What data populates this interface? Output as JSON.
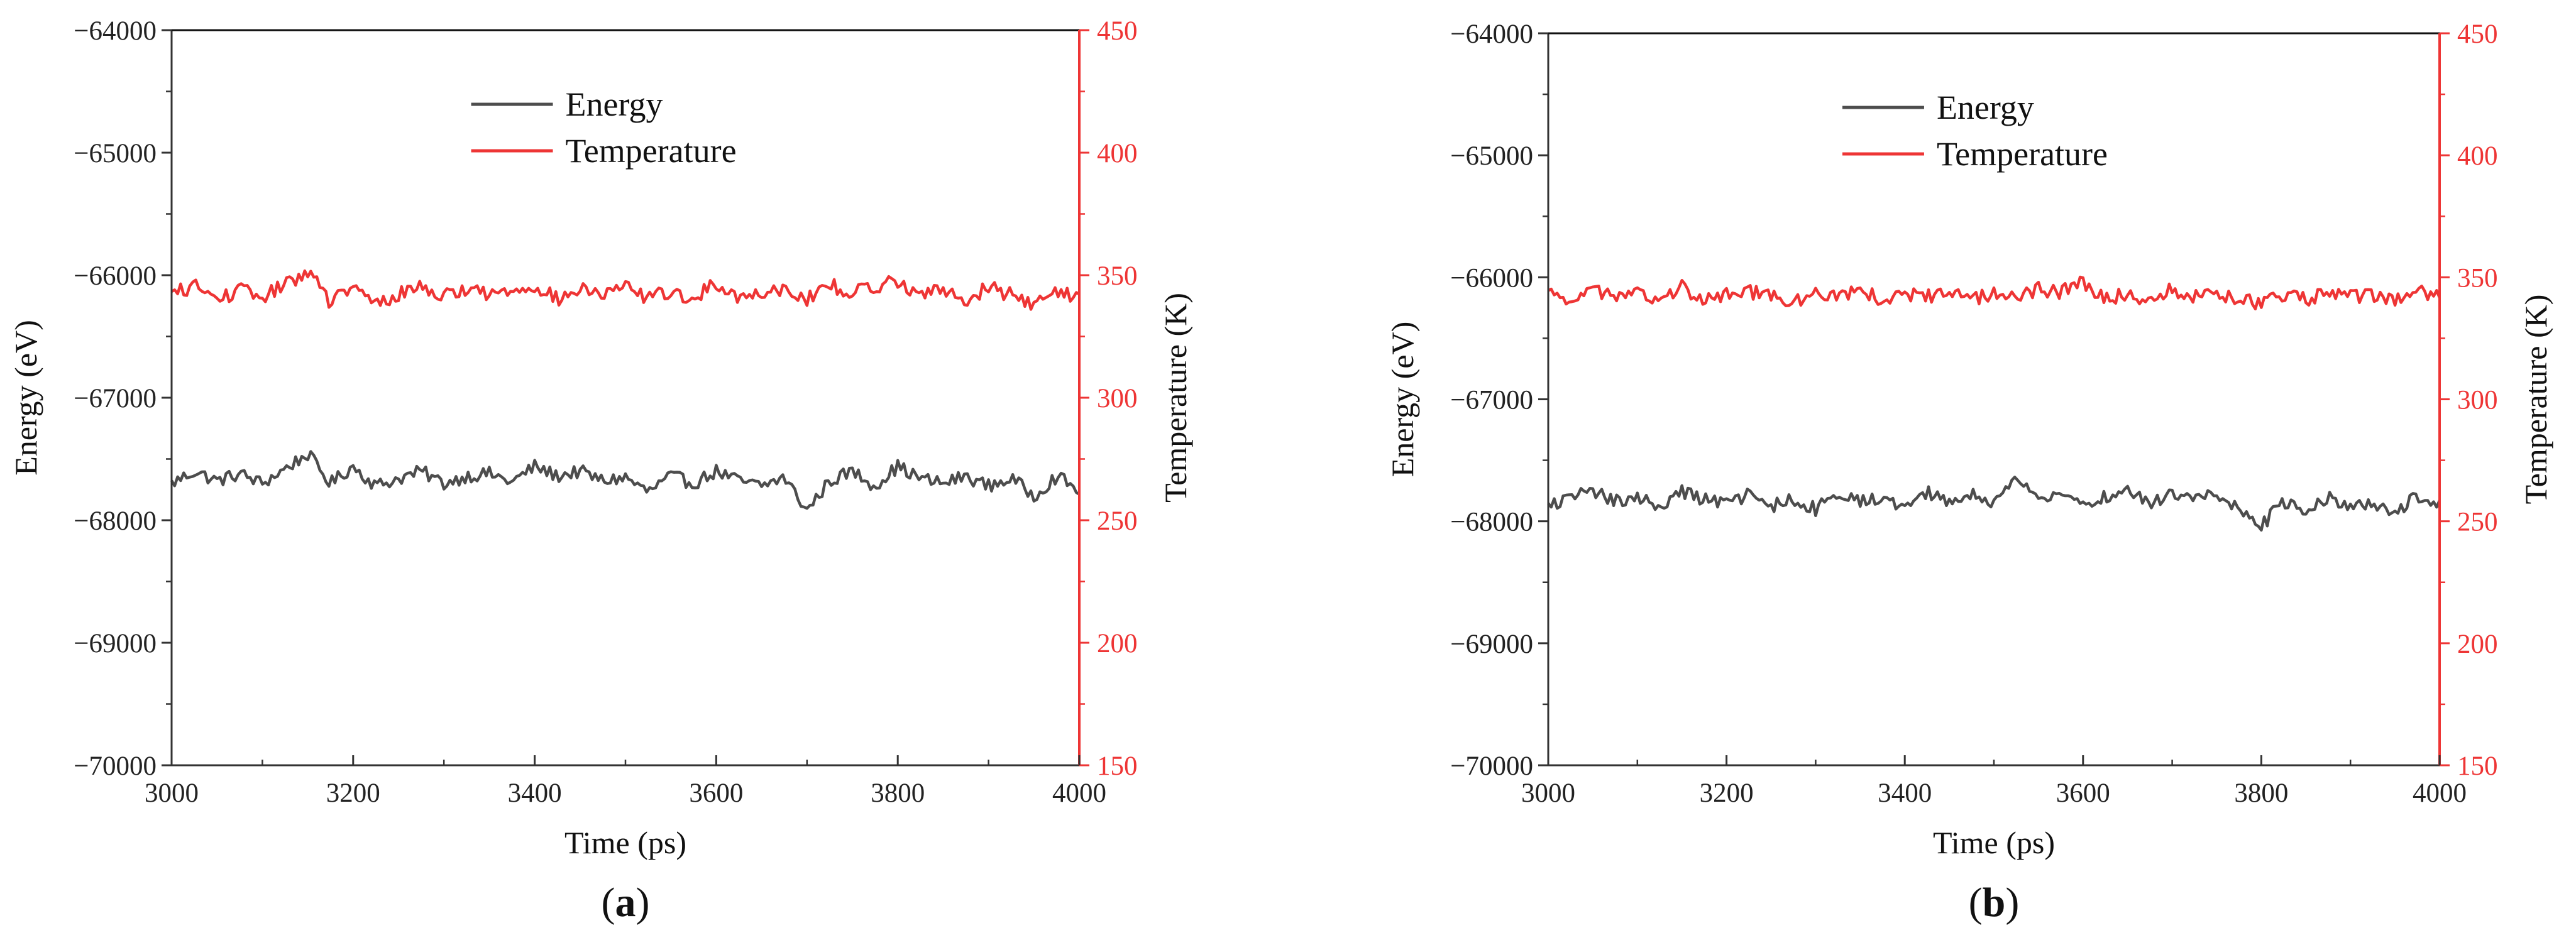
{
  "colors": {
    "energy": "#4d4d4d",
    "temperature": "#ee3535",
    "axis_left": "#333333",
    "axis_right": "#ee3535"
  },
  "chart_data": [
    {
      "type": "line",
      "panel_label": "(a)",
      "panel_letter": "a",
      "xlabel": "Time (ps)",
      "ylabel_left": "Energy (eV)",
      "ylabel_right": "Temperature (K)",
      "xlim": [
        3000,
        4000
      ],
      "ylim_left": [
        -70000,
        -64000
      ],
      "ylim_right": [
        150,
        450
      ],
      "x_ticks": [
        "3000",
        "3200",
        "3400",
        "3600",
        "3800",
        "4000"
      ],
      "y_ticks_left": [
        "−70000",
        "−69000",
        "−68000",
        "−67000",
        "−66000",
        "−65000",
        "−64000"
      ],
      "y_ticks_right": [
        "150",
        "200",
        "250",
        "300",
        "350",
        "400",
        "450"
      ],
      "grid": false,
      "legend_position": "top-center",
      "series": [
        {
          "name": "Energy",
          "axis": "left",
          "x": [
            3000,
            3025,
            3050,
            3075,
            3100,
            3125,
            3150,
            3175,
            3200,
            3225,
            3250,
            3275,
            3300,
            3325,
            3350,
            3375,
            3400,
            3425,
            3450,
            3475,
            3500,
            3525,
            3550,
            3575,
            3600,
            3625,
            3650,
            3675,
            3700,
            3725,
            3750,
            3775,
            3800,
            3825,
            3850,
            3875,
            3900,
            3925,
            3950,
            3975,
            4000
          ],
          "values": [
            -67700,
            -67600,
            -67680,
            -67620,
            -67700,
            -67580,
            -67460,
            -67700,
            -67560,
            -67720,
            -67660,
            -67600,
            -67700,
            -67640,
            -67620,
            -67690,
            -67560,
            -67640,
            -67600,
            -67680,
            -67650,
            -67770,
            -67640,
            -67700,
            -67600,
            -67680,
            -67720,
            -67650,
            -67920,
            -67680,
            -67600,
            -67720,
            -67560,
            -67660,
            -67700,
            -67640,
            -67720,
            -67660,
            -67800,
            -67640,
            -67760
          ],
          "noise": 55
        },
        {
          "name": "Temperature",
          "axis": "right",
          "x": [
            3000,
            3025,
            3050,
            3075,
            3100,
            3125,
            3150,
            3175,
            3200,
            3225,
            3250,
            3275,
            3300,
            3325,
            3350,
            3375,
            3400,
            3425,
            3450,
            3475,
            3500,
            3525,
            3550,
            3575,
            3600,
            3625,
            3650,
            3675,
            3700,
            3725,
            3750,
            3775,
            3800,
            3825,
            3850,
            3875,
            3900,
            3925,
            3950,
            3975,
            4000
          ],
          "values": [
            342,
            346,
            340,
            344,
            341,
            346,
            352,
            339,
            345,
            338,
            342,
            346,
            341,
            345,
            342,
            344,
            346,
            340,
            344,
            342,
            345,
            341,
            343,
            340,
            347,
            341,
            343,
            345,
            340,
            346,
            343,
            345,
            348,
            342,
            344,
            340,
            345,
            342,
            338,
            344,
            341
          ],
          "noise": 3
        }
      ]
    },
    {
      "type": "line",
      "panel_label": "(b)",
      "panel_letter": "b",
      "xlabel": "Time (ps)",
      "ylabel_left": "Energy (eV)",
      "ylabel_right": "Temperature (K)",
      "xlim": [
        3000,
        4000
      ],
      "ylim_left": [
        -70000,
        -64000
      ],
      "ylim_right": [
        150,
        450
      ],
      "x_ticks": [
        "3000",
        "3200",
        "3400",
        "3600",
        "3800",
        "4000"
      ],
      "y_ticks_left": [
        "−70000",
        "−69000",
        "−68000",
        "−67000",
        "−66000",
        "−65000",
        "−64000"
      ],
      "y_ticks_right": [
        "150",
        "200",
        "250",
        "300",
        "350",
        "400",
        "450"
      ],
      "grid": false,
      "legend_position": "top-center",
      "series": [
        {
          "name": "Energy",
          "axis": "left",
          "x": [
            3000,
            3025,
            3050,
            3075,
            3100,
            3125,
            3150,
            3175,
            3200,
            3225,
            3250,
            3275,
            3300,
            3325,
            3350,
            3375,
            3400,
            3425,
            3450,
            3475,
            3500,
            3525,
            3550,
            3575,
            3600,
            3625,
            3650,
            3675,
            3700,
            3725,
            3750,
            3775,
            3800,
            3825,
            3850,
            3875,
            3900,
            3925,
            3950,
            3975,
            4000
          ],
          "values": [
            -67880,
            -67800,
            -67760,
            -67840,
            -67800,
            -67880,
            -67760,
            -67820,
            -67860,
            -67780,
            -67880,
            -67820,
            -67900,
            -67780,
            -67840,
            -67800,
            -67880,
            -67760,
            -67840,
            -67780,
            -67860,
            -67620,
            -67820,
            -67780,
            -67860,
            -67800,
            -67740,
            -67860,
            -67780,
            -67820,
            -67760,
            -67900,
            -68040,
            -67840,
            -67900,
            -67800,
            -67880,
            -67840,
            -67920,
            -67800,
            -67880
          ],
          "noise": 55
        },
        {
          "name": "Temperature",
          "axis": "right",
          "x": [
            3000,
            3025,
            3050,
            3075,
            3100,
            3125,
            3150,
            3175,
            3200,
            3225,
            3250,
            3275,
            3300,
            3325,
            3350,
            3375,
            3400,
            3425,
            3450,
            3475,
            3500,
            3525,
            3550,
            3575,
            3600,
            3625,
            3650,
            3675,
            3700,
            3725,
            3750,
            3775,
            3800,
            3825,
            3850,
            3875,
            3900,
            3925,
            3950,
            3975,
            4000
          ],
          "values": [
            343,
            341,
            345,
            342,
            344,
            340,
            346,
            341,
            343,
            344,
            342,
            339,
            344,
            342,
            345,
            341,
            343,
            342,
            344,
            341,
            343,
            342,
            345,
            344,
            348,
            341,
            343,
            341,
            345,
            342,
            343,
            341,
            339,
            343,
            341,
            344,
            342,
            343,
            341,
            344,
            342
          ],
          "noise": 3
        }
      ]
    }
  ]
}
